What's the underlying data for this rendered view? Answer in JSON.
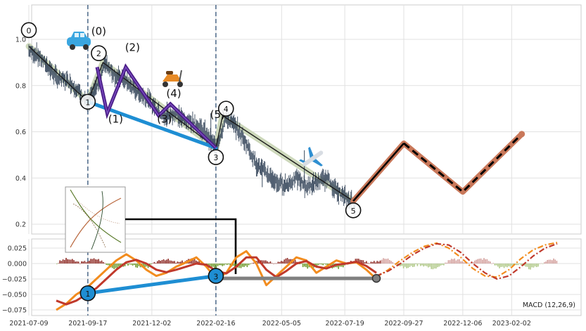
{
  "chart_data": [
    {
      "type": "line",
      "panel": "price",
      "title": "",
      "xlabel": "",
      "ylabel": "",
      "ylim": [
        0.15,
        1.15
      ],
      "grid": true,
      "yticks": [
        0.2,
        0.4,
        0.6,
        0.8,
        1.0
      ],
      "ytick_labels": [
        "0.2",
        "0.4",
        "0.6",
        "0.8",
        "1.0"
      ],
      "xticks": [
        "2021-07-09",
        "2021-09-17",
        "2021-12-02",
        "2022-02-16",
        "2022-05-05",
        "2022-07-19",
        "2022-09-27",
        "2022-12-06",
        "2023-02-02"
      ],
      "vertical_lines": [
        "2021-09-17",
        "2022-02-16"
      ],
      "price_points": [
        {
          "x": "2021-07-09",
          "y": 0.95
        },
        {
          "x": "2021-07-20",
          "y": 0.93
        },
        {
          "x": "2021-08-01",
          "y": 0.88
        },
        {
          "x": "2021-08-12",
          "y": 0.83
        },
        {
          "x": "2021-08-25",
          "y": 0.82
        },
        {
          "x": "2021-09-05",
          "y": 0.78
        },
        {
          "x": "2021-09-17",
          "y": 0.72
        },
        {
          "x": "2021-09-28",
          "y": 0.8
        },
        {
          "x": "2021-10-08",
          "y": 0.9
        },
        {
          "x": "2021-10-20",
          "y": 0.84
        },
        {
          "x": "2021-11-01",
          "y": 0.82
        },
        {
          "x": "2021-11-12",
          "y": 0.78
        },
        {
          "x": "2021-11-24",
          "y": 0.75
        },
        {
          "x": "2021-12-05",
          "y": 0.71
        },
        {
          "x": "2021-12-17",
          "y": 0.66
        },
        {
          "x": "2021-12-29",
          "y": 0.68
        },
        {
          "x": "2022-01-10",
          "y": 0.65
        },
        {
          "x": "2022-01-22",
          "y": 0.64
        },
        {
          "x": "2022-02-03",
          "y": 0.6
        },
        {
          "x": "2022-02-16",
          "y": 0.53
        },
        {
          "x": "2022-02-28",
          "y": 0.66
        },
        {
          "x": "2022-03-12",
          "y": 0.62
        },
        {
          "x": "2022-03-24",
          "y": 0.55
        },
        {
          "x": "2022-04-05",
          "y": 0.46
        },
        {
          "x": "2022-04-17",
          "y": 0.42
        },
        {
          "x": "2022-04-29",
          "y": 0.38
        },
        {
          "x": "2022-05-11",
          "y": 0.37
        },
        {
          "x": "2022-05-23",
          "y": 0.4
        },
        {
          "x": "2022-06-04",
          "y": 0.36
        },
        {
          "x": "2022-06-16",
          "y": 0.38
        },
        {
          "x": "2022-06-28",
          "y": 0.4
        },
        {
          "x": "2022-07-10",
          "y": 0.34
        },
        {
          "x": "2022-07-22",
          "y": 0.31
        },
        {
          "x": "2022-08-01",
          "y": 0.29
        }
      ],
      "trend_line": [
        {
          "x": "2021-07-09",
          "y": 0.97
        },
        {
          "x": "2021-09-17",
          "y": 0.73
        },
        {
          "x": "2021-10-05",
          "y": 0.9
        },
        {
          "x": "2022-02-16",
          "y": 0.53
        },
        {
          "x": "2022-02-24",
          "y": 0.67
        },
        {
          "x": "2022-07-29",
          "y": 0.3
        }
      ],
      "wave_path": [
        {
          "x": "2021-09-28",
          "y": 0.88
        },
        {
          "x": "2021-10-10",
          "y": 0.68
        },
        {
          "x": "2021-11-01",
          "y": 0.88
        },
        {
          "x": "2021-12-10",
          "y": 0.67
        },
        {
          "x": "2021-12-24",
          "y": 0.72
        },
        {
          "x": "2022-02-16",
          "y": 0.53
        }
      ],
      "support_line": [
        {
          "x": "2021-09-17",
          "y": 0.73
        },
        {
          "x": "2022-02-16",
          "y": 0.53
        }
      ],
      "projection": [
        {
          "x": "2022-07-29",
          "y": 0.3
        },
        {
          "x": "2022-09-27",
          "y": 0.55
        },
        {
          "x": "2022-12-06",
          "y": 0.34
        },
        {
          "x": "2023-02-14",
          "y": 0.59
        }
      ],
      "wave_labels": [
        {
          "text": "0",
          "x": "2021-07-09",
          "y": 1.04,
          "circled": true
        },
        {
          "text": "(0)",
          "x": "2021-09-30",
          "y": 1.02,
          "circled": false
        },
        {
          "text": "2",
          "x": "2021-09-30",
          "y": 0.94,
          "circled": true
        },
        {
          "text": "(2)",
          "x": "2021-11-09",
          "y": 0.95,
          "circled": false
        },
        {
          "text": "1",
          "x": "2021-09-17",
          "y": 0.73,
          "circled": true
        },
        {
          "text": "(1)",
          "x": "2021-10-20",
          "y": 0.64,
          "circled": false
        },
        {
          "text": "(3)",
          "x": "2021-12-17",
          "y": 0.64,
          "circled": false
        },
        {
          "text": "(4)",
          "x": "2021-12-28",
          "y": 0.75,
          "circled": false
        },
        {
          "text": "(5)",
          "x": "2022-02-18",
          "y": 0.66,
          "circled": false
        },
        {
          "text": "4",
          "x": "2022-02-28",
          "y": 0.7,
          "circled": true
        },
        {
          "text": "3",
          "x": "2022-02-16",
          "y": 0.49,
          "circled": true
        },
        {
          "text": "5",
          "x": "2022-07-29",
          "y": 0.26,
          "circled": true
        }
      ]
    },
    {
      "type": "line",
      "panel": "macd",
      "title": "MACD (12,26,9)",
      "ylim": [
        -0.08,
        0.04
      ],
      "grid": true,
      "yticks": [
        0.025,
        0.0,
        -0.025,
        -0.05,
        -0.075
      ],
      "ytick_labels": [
        "0.025",
        "0.000",
        "−0.025",
        "−0.050",
        "−0.075"
      ],
      "series": [
        {
          "values": [
            -0.075,
            -0.065,
            -0.05,
            -0.04,
            -0.025,
            -0.01,
            0.005,
            0.015,
            0.005,
            -0.01,
            -0.02,
            -0.015,
            -0.005,
            0.002,
            0.01,
            -0.005,
            -0.025,
            -0.015,
            0.01,
            0.02,
            0.0,
            -0.035,
            -0.02,
            -0.005,
            0.01,
            0.005,
            -0.015,
            -0.005,
            0.005,
            0.0,
            0.002,
            -0.01,
            -0.025
          ]
        },
        {
          "values": [
            -0.06,
            -0.066,
            -0.06,
            -0.05,
            -0.04,
            -0.025,
            -0.01,
            0.002,
            0.006,
            0.0,
            -0.01,
            -0.014,
            -0.01,
            -0.005,
            0.0,
            -0.002,
            -0.012,
            -0.016,
            -0.005,
            0.01,
            0.01,
            -0.01,
            -0.022,
            -0.012,
            0.0,
            0.004,
            -0.005,
            -0.008,
            -0.002,
            0.0,
            0.003,
            -0.004,
            -0.015
          ]
        }
      ],
      "projection_series": [
        {
          "values": [
            -0.022,
            -0.01,
            0.005,
            0.018,
            0.028,
            0.033,
            0.025,
            0.01,
            -0.008,
            -0.02,
            -0.022,
            -0.01,
            0.008,
            0.022,
            0.03,
            0.034
          ]
        },
        {
          "values": [
            -0.02,
            -0.012,
            0.0,
            0.014,
            0.025,
            0.032,
            0.03,
            0.018,
            0.0,
            -0.015,
            -0.025,
            -0.02,
            -0.005,
            0.012,
            0.025,
            0.032
          ]
        }
      ],
      "markers": [
        {
          "text": "1",
          "x": "2021-09-17",
          "y": -0.048
        },
        {
          "text": "3",
          "x": "2022-02-16",
          "y": -0.02
        }
      ]
    }
  ]
}
